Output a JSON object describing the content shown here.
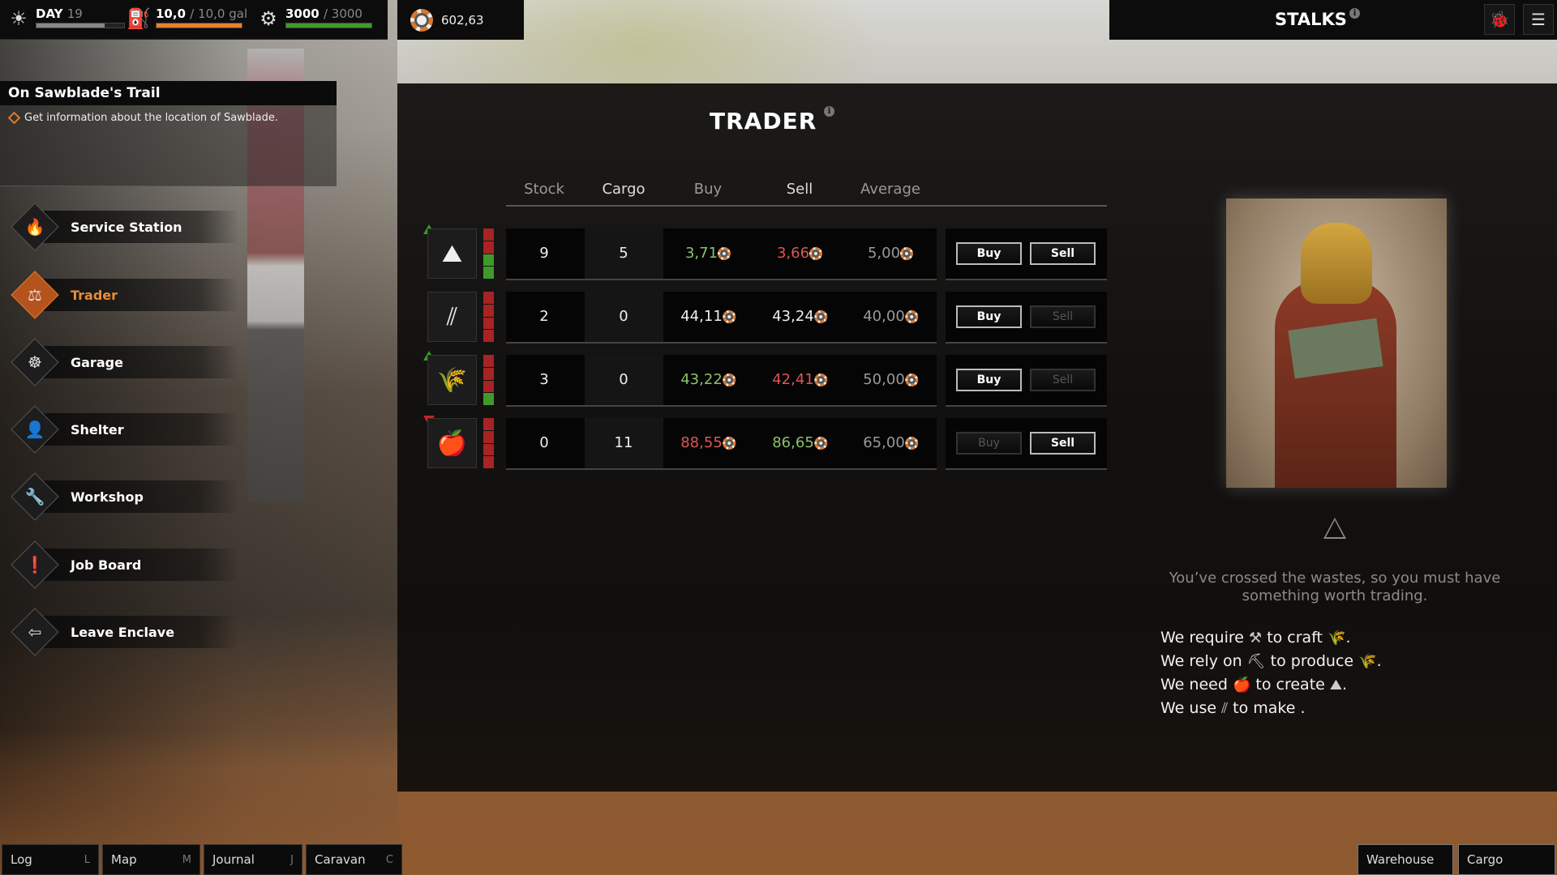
{
  "hud": {
    "day_label": "DAY",
    "day_value": "19",
    "day_progress": 0.78,
    "fuel_value": "10,0",
    "fuel_max": "/ 10,0 gal",
    "fuel_progress": 1.0,
    "health_value": "3000",
    "health_max": "/ 3000",
    "health_progress": 1.0,
    "money": "602,63"
  },
  "header": {
    "location": "STALKS"
  },
  "quest": {
    "title": "On Sawblade's Trail",
    "objective": "Get information about the location of Sawblade."
  },
  "menu": [
    {
      "label": "Service Station",
      "icon": "flame-icon",
      "glyph": "🔥"
    },
    {
      "label": "Trader",
      "icon": "scales-icon",
      "glyph": "⚖",
      "active": true
    },
    {
      "label": "Garage",
      "icon": "steering-wheel-icon",
      "glyph": "☸"
    },
    {
      "label": "Shelter",
      "icon": "person-icon",
      "glyph": "👤"
    },
    {
      "label": "Workshop",
      "icon": "wrench-icon",
      "glyph": "🔧"
    },
    {
      "label": "Job Board",
      "icon": "board-icon",
      "glyph": "❗"
    },
    {
      "label": "Leave Enclave",
      "icon": "exit-icon",
      "glyph": "⇦"
    }
  ],
  "trader": {
    "title": "TRADER",
    "columns": [
      "Stock",
      "Cargo",
      "Buy",
      "Sell",
      "Average"
    ],
    "buy_label": "Buy",
    "sell_label": "Sell",
    "rows": [
      {
        "item_icon": "scrap-pile-icon",
        "glyph": "⛰",
        "trend": "up",
        "stock": "9",
        "cargo": "5",
        "buy": "3,71",
        "buy_color": "green",
        "sell": "3,66",
        "sell_color": "red",
        "average": "5,00",
        "buy_enabled": true,
        "sell_enabled": true,
        "stock_level": 0.5
      },
      {
        "item_icon": "pipes-icon",
        "glyph": "⫽",
        "trend": "none",
        "stock": "2",
        "cargo": "0",
        "buy": "44,11",
        "buy_color": "white",
        "sell": "43,24",
        "sell_color": "white",
        "average": "40,00",
        "buy_enabled": true,
        "sell_enabled": false,
        "stock_level": 0
      },
      {
        "item_icon": "wheat-icon",
        "glyph": "🌾",
        "trend": "up",
        "stock": "3",
        "cargo": "0",
        "buy": "43,22",
        "buy_color": "green",
        "sell": "42,41",
        "sell_color": "red",
        "average": "50,00",
        "buy_enabled": true,
        "sell_enabled": false,
        "stock_level": 0.25
      },
      {
        "item_icon": "apple-icon",
        "glyph": "🍎",
        "trend": "down",
        "stock": "0",
        "cargo": "11",
        "buy": "88,55",
        "buy_color": "red",
        "sell": "86,65",
        "sell_color": "green",
        "average": "65,00",
        "buy_enabled": false,
        "sell_enabled": true,
        "stock_level": 0
      }
    ],
    "flavor": "You’ve crossed the wastes, so you must have something worth trading.",
    "needs": [
      {
        "a": "We require",
        "b": "to craft",
        "end": ".",
        "g1": "⚒",
        "g2": "🌾"
      },
      {
        "a": "We rely on",
        "b": "to produce",
        "end": ".",
        "g1": "⛏",
        "g2": "🌾"
      },
      {
        "a": "We need",
        "b": "to create",
        "end": ".",
        "g1": "🍎",
        "g2": "⛰"
      },
      {
        "a": "We use",
        "b": "to make .",
        "end": "",
        "g1": "⫽",
        "g2": ""
      }
    ]
  },
  "bottom": {
    "left": [
      {
        "label": "Log",
        "key": "L"
      },
      {
        "label": "Map",
        "key": "M"
      },
      {
        "label": "Journal",
        "key": "J"
      },
      {
        "label": "Caravan",
        "key": "C"
      }
    ],
    "right": [
      {
        "label": "Warehouse"
      },
      {
        "label": "Cargo"
      }
    ]
  },
  "colors": {
    "accent": "#e07a2a",
    "green": "#8cc06a",
    "red": "#dd5555"
  }
}
